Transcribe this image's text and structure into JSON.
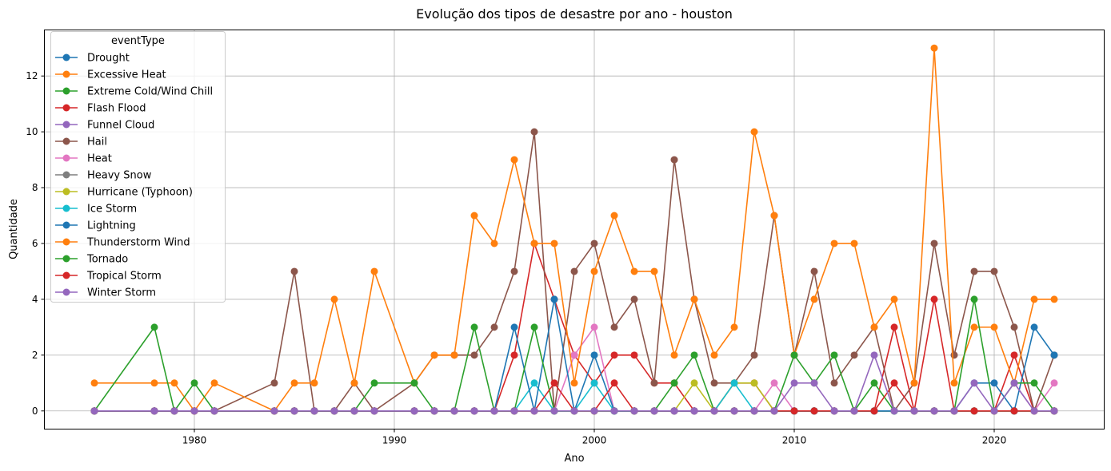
{
  "chart_data": {
    "type": "line",
    "title": "Evolução dos tipos de desastre por ano - houston",
    "xlabel": "Ano",
    "ylabel": "Quantidade",
    "xlim": [
      1972.5,
      2025.5
    ],
    "ylim": [
      -0.65,
      13.65
    ],
    "xticks": [
      1980,
      1990,
      2000,
      2010,
      2020
    ],
    "yticks": [
      0,
      2,
      4,
      6,
      8,
      10,
      12
    ],
    "grid": true,
    "legend": {
      "title": "eventType",
      "placement": "top-left"
    },
    "x": [
      1975,
      1978,
      1979,
      1980,
      1981,
      1984,
      1985,
      1986,
      1987,
      1988,
      1989,
      1991,
      1992,
      1993,
      1994,
      1995,
      1996,
      1997,
      1998,
      1999,
      2000,
      2001,
      2002,
      2003,
      2004,
      2005,
      2006,
      2007,
      2008,
      2009,
      2010,
      2011,
      2012,
      2013,
      2014,
      2015,
      2016,
      2017,
      2018,
      2019,
      2020,
      2021,
      2022,
      2023
    ],
    "series": [
      {
        "name": "Drought",
        "color": "#1f77b4",
        "values": [
          0,
          0,
          0,
          0,
          0,
          0,
          0,
          0,
          0,
          0,
          0,
          0,
          0,
          0,
          0,
          0,
          0,
          0,
          0,
          0,
          0,
          0,
          0,
          0,
          0,
          0,
          0,
          0,
          0,
          0,
          0,
          0,
          0,
          0,
          0,
          0,
          0,
          0,
          0,
          0,
          0,
          0,
          0,
          0
        ]
      },
      {
        "name": "Excessive Heat",
        "color": "#ff7f0e",
        "values": [
          0,
          0,
          0,
          0,
          0,
          0,
          0,
          0,
          0,
          0,
          0,
          0,
          0,
          0,
          0,
          0,
          0,
          0,
          0,
          0,
          0,
          0,
          0,
          0,
          0,
          0,
          0,
          0,
          0,
          0,
          0,
          0,
          0,
          0,
          0,
          0,
          0,
          0,
          0,
          0,
          0,
          0,
          0,
          0
        ]
      },
      {
        "name": "Extreme Cold/Wind Chill",
        "color": "#2ca02c",
        "values": [
          0,
          0,
          0,
          0,
          0,
          0,
          0,
          0,
          0,
          0,
          0,
          0,
          0,
          0,
          0,
          0,
          0,
          0,
          0,
          0,
          0,
          0,
          0,
          0,
          0,
          0,
          0,
          0,
          0,
          0,
          0,
          0,
          0,
          0,
          0,
          0,
          0,
          0,
          0,
          0,
          0,
          0,
          0,
          0
        ]
      },
      {
        "name": "Flash Flood",
        "color": "#d62728",
        "values": [
          0,
          0,
          0,
          0,
          0,
          0,
          0,
          0,
          0,
          0,
          0,
          0,
          0,
          0,
          0,
          0,
          2,
          6,
          4,
          2,
          1,
          2,
          2,
          1,
          1,
          0,
          0,
          1,
          1,
          0,
          0,
          0,
          0,
          0,
          0,
          3,
          0,
          4,
          0,
          0,
          0,
          2,
          0,
          0
        ]
      },
      {
        "name": "Funnel Cloud",
        "color": "#9467bd",
        "values": [
          0,
          0,
          0,
          0,
          0,
          0,
          0,
          0,
          0,
          0,
          0,
          0,
          0,
          0,
          0,
          0,
          0,
          0,
          0,
          0,
          0,
          0,
          0,
          0,
          0,
          0,
          0,
          0,
          0,
          0,
          0,
          0,
          0,
          0,
          0,
          0,
          0,
          0,
          0,
          0,
          0,
          0,
          0,
          0
        ]
      },
      {
        "name": "Hail",
        "color": "#8c564b",
        "values": [
          0,
          0,
          0,
          0,
          0,
          1,
          5,
          0,
          0,
          1,
          0,
          1,
          2,
          2,
          2,
          3,
          5,
          10,
          0,
          5,
          6,
          3,
          4,
          1,
          9,
          4,
          1,
          1,
          2,
          7,
          2,
          5,
          1,
          2,
          3,
          0,
          1,
          6,
          2,
          5,
          5,
          3,
          0,
          2
        ]
      },
      {
        "name": "Heat",
        "color": "#e377c2",
        "values": [
          0,
          0,
          0,
          0,
          0,
          0,
          0,
          0,
          0,
          0,
          0,
          0,
          0,
          0,
          0,
          0,
          0,
          0,
          0,
          2,
          3,
          0,
          0,
          0,
          0,
          0,
          0,
          0,
          0,
          1,
          0,
          0,
          0,
          0,
          0,
          0,
          0,
          0,
          0,
          0,
          0,
          1,
          0,
          1
        ]
      },
      {
        "name": "Heavy Snow",
        "color": "#7f7f7f",
        "values": [
          0,
          0,
          0,
          0,
          0,
          0,
          0,
          0,
          0,
          0,
          0,
          0,
          0,
          0,
          0,
          0,
          0,
          0,
          0,
          0,
          0,
          0,
          0,
          0,
          0,
          0,
          0,
          0,
          0,
          0,
          0,
          0,
          0,
          0,
          0,
          0,
          0,
          0,
          0,
          0,
          0,
          0,
          0,
          0
        ]
      },
      {
        "name": "Hurricane (Typhoon)",
        "color": "#bcbd22",
        "values": [
          0,
          0,
          0,
          0,
          0,
          0,
          0,
          0,
          0,
          0,
          0,
          0,
          0,
          0,
          0,
          0,
          0,
          0,
          0,
          0,
          0,
          0,
          0,
          0,
          0,
          1,
          0,
          1,
          1,
          0,
          0,
          0,
          0,
          0,
          0,
          0,
          0,
          0,
          0,
          0,
          0,
          0,
          0,
          0
        ]
      },
      {
        "name": "Ice Storm",
        "color": "#17becf",
        "values": [
          0,
          0,
          0,
          0,
          0,
          0,
          0,
          0,
          0,
          0,
          0,
          0,
          0,
          0,
          0,
          0,
          0,
          1,
          0,
          0,
          1,
          0,
          0,
          0,
          0,
          0,
          0,
          1,
          0,
          0,
          0,
          0,
          0,
          0,
          0,
          0,
          0,
          0,
          0,
          0,
          0,
          0,
          0,
          0
        ]
      },
      {
        "name": "Lightning",
        "color": "#1f77b4",
        "values": [
          0,
          0,
          0,
          0,
          0,
          0,
          0,
          0,
          0,
          0,
          0,
          0,
          0,
          0,
          0,
          0,
          3,
          0,
          4,
          0,
          2,
          0,
          0,
          0,
          0,
          0,
          0,
          0,
          0,
          0,
          0,
          0,
          0,
          0,
          0,
          0,
          0,
          0,
          0,
          1,
          1,
          0,
          3,
          2
        ]
      },
      {
        "name": "Thunderstorm Wind",
        "color": "#ff7f0e",
        "values": [
          1,
          1,
          1,
          0,
          1,
          0,
          1,
          1,
          4,
          1,
          5,
          1,
          2,
          2,
          7,
          6,
          9,
          6,
          6,
          1,
          5,
          7,
          5,
          5,
          2,
          4,
          2,
          3,
          10,
          7,
          2,
          4,
          6,
          6,
          3,
          4,
          1,
          13,
          1,
          3,
          3,
          1,
          4,
          4
        ]
      },
      {
        "name": "Tornado",
        "color": "#2ca02c",
        "values": [
          0,
          3,
          0,
          1,
          0,
          0,
          0,
          0,
          0,
          0,
          1,
          1,
          0,
          0,
          3,
          0,
          0,
          3,
          0,
          0,
          0,
          0,
          0,
          0,
          1,
          2,
          0,
          0,
          0,
          0,
          2,
          1,
          2,
          0,
          1,
          0,
          0,
          0,
          0,
          4,
          0,
          1,
          1,
          0
        ]
      },
      {
        "name": "Tropical Storm",
        "color": "#d62728",
        "values": [
          0,
          0,
          0,
          0,
          0,
          0,
          0,
          0,
          0,
          0,
          0,
          0,
          0,
          0,
          0,
          0,
          0,
          0,
          1,
          0,
          0,
          1,
          0,
          0,
          0,
          0,
          0,
          0,
          0,
          0,
          0,
          0,
          0,
          0,
          0,
          1,
          0,
          0,
          0,
          0,
          0,
          0,
          0,
          0
        ]
      },
      {
        "name": "Winter Storm",
        "color": "#9467bd",
        "values": [
          0,
          0,
          0,
          0,
          0,
          0,
          0,
          0,
          0,
          0,
          0,
          0,
          0,
          0,
          0,
          0,
          0,
          0,
          0,
          0,
          0,
          0,
          0,
          0,
          0,
          0,
          0,
          0,
          0,
          0,
          1,
          1,
          0,
          0,
          2,
          0,
          0,
          0,
          0,
          1,
          0,
          1,
          0,
          0
        ]
      }
    ]
  }
}
